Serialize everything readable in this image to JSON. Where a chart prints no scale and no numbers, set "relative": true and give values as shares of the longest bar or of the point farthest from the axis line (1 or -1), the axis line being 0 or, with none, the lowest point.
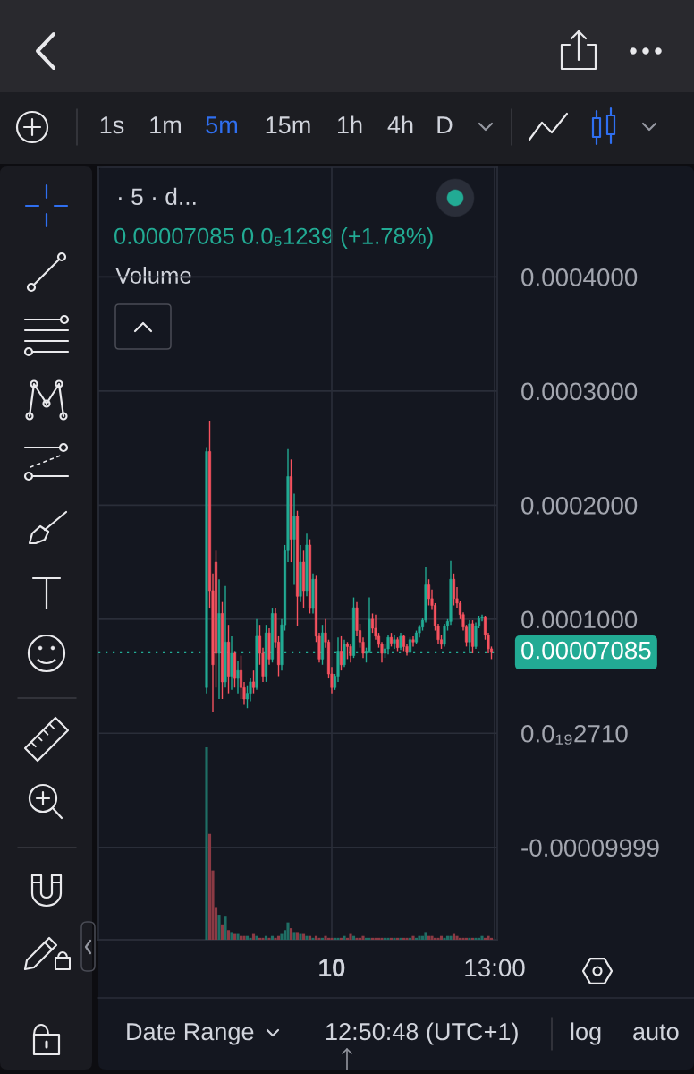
{
  "chart_data": [
    {
      "type": "candlestick",
      "title": "· 5 · d...",
      "subtitle": "0.00007085 0.0₅1239 (+1.78%)",
      "categories": [
        null,
        null,
        null,
        null,
        null,
        null,
        null,
        null,
        null,
        null,
        null,
        null,
        null,
        null,
        null,
        null,
        null,
        null,
        null,
        null,
        null,
        null,
        null,
        null,
        null,
        null,
        null,
        null,
        null,
        null,
        null,
        null,
        null,
        null,
        null,
        null,
        null,
        null,
        null,
        null,
        "10",
        null,
        null,
        null,
        null,
        null,
        null,
        null,
        null,
        null,
        null,
        null,
        null,
        null,
        null,
        null,
        null,
        null,
        null,
        null,
        null,
        null,
        null,
        null,
        null,
        null,
        null,
        null,
        null,
        null,
        null,
        null,
        null,
        null,
        null,
        null,
        null,
        null,
        null,
        null,
        null,
        null,
        null,
        null,
        null,
        null,
        null,
        null,
        null,
        null,
        null,
        null,
        "13:00"
      ],
      "ylim": [
        -0.000181,
        0.000496
      ],
      "yticks": [
        {
          "value": 0.0004,
          "label": "0.0004000"
        },
        {
          "value": 0.0003,
          "label": "0.0003000"
        },
        {
          "value": 0.0002,
          "label": "0.0002000"
        },
        {
          "value": 0.0001,
          "label": "0.0001000"
        },
        {
          "value": 0,
          "label": "0.0₁₉2710"
        },
        {
          "value": -9.999e-05,
          "label": "-0.00009999"
        }
      ],
      "grid": true,
      "ohlc": [
        [
          4e-05,
          0.00025,
          3.5e-05,
          0.000247
        ],
        [
          0.000247,
          0.000274,
          0.00011,
          0.000125
        ],
        [
          0.000125,
          0.00014,
          1.9e-05,
          6e-05
        ],
        [
          0.00015,
          0.00016,
          4e-05,
          7e-05
        ],
        [
          7e-05,
          0.000135,
          3e-05,
          0.000105
        ],
        [
          0.000105,
          0.000115,
          3e-05,
          4.5e-05
        ],
        [
          4.5e-05,
          0.000129,
          4e-05,
          8e-05
        ],
        [
          8e-05,
          9.5e-05,
          3.5e-05,
          5e-05
        ],
        [
          5e-05,
          8.5e-05,
          3.8e-05,
          7e-05
        ],
        [
          7e-05,
          7.2e-05,
          4e-05,
          4.8e-05
        ],
        [
          4.8e-05,
          6.3e-05,
          3.5e-05,
          5.5e-05
        ],
        [
          5.5e-05,
          6.8e-05,
          3e-05,
          4e-05
        ],
        [
          4e-05,
          4.5e-05,
          2.5e-05,
          3e-05
        ],
        [
          3e-05,
          4.2e-05,
          2.2e-05,
          3.5e-05
        ],
        [
          3.5e-05,
          4.8e-05,
          2.8e-05,
          4.5e-05
        ],
        [
          4.5e-05,
          5.5e-05,
          3.5e-05,
          4e-05
        ],
        [
          4e-05,
          0.0001,
          3.8e-05,
          8.5e-05
        ],
        [
          8.5e-05,
          9.5e-05,
          6e-05,
          7e-05
        ],
        [
          7e-05,
          7.5e-05,
          4.5e-05,
          5e-05
        ],
        [
          5e-05,
          9.5e-05,
          4.5e-05,
          8.8e-05
        ],
        [
          8.8e-05,
          9.2e-05,
          6e-05,
          6.5e-05
        ],
        [
          6.5e-05,
          0.00011,
          6.2e-05,
          0.000105
        ],
        [
          0.000105,
          0.00011,
          7.5e-05,
          8e-05
        ],
        [
          8e-05,
          8.5e-05,
          5e-05,
          6e-05
        ],
        [
          6e-05,
          0.0001,
          5.5e-05,
          9.5e-05
        ],
        [
          9.5e-05,
          0.000165,
          9e-05,
          0.00016
        ],
        [
          0.00016,
          0.000249,
          0.00015,
          0.000225
        ],
        [
          0.000225,
          0.00024,
          0.00015,
          0.00017
        ],
        [
          0.00017,
          0.00021,
          0.00013,
          0.00019
        ],
        [
          0.00019,
          0.000195,
          9.4e-05,
          0.00012
        ],
        [
          0.00012,
          0.000165,
          0.000115,
          0.00015
        ],
        [
          0.00015,
          0.00016,
          0.00011,
          0.000125
        ],
        [
          0.000125,
          0.000175,
          0.00012,
          0.000165
        ],
        [
          0.000165,
          0.00017,
          0.000105,
          0.00011
        ],
        [
          0.00011,
          0.00014,
          0.000105,
          0.000135
        ],
        [
          0.000135,
          0.000138,
          8e-05,
          8.5e-05
        ],
        [
          8.5e-05,
          8.8e-05,
          6.2e-05,
          6.5e-05
        ],
        [
          6.5e-05,
          9.5e-05,
          6e-05,
          8.8e-05
        ],
        [
          8.8e-05,
          0.0001,
          7.5e-05,
          8e-05
        ],
        [
          8e-05,
          8.2e-05,
          4.8e-05,
          5.2e-05
        ],
        [
          5.2e-05,
          5.8e-05,
          3.5e-05,
          4e-05
        ],
        [
          4e-05,
          5.2e-05,
          3.8e-05,
          5e-05
        ],
        [
          5e-05,
          8.4e-05,
          4.5e-05,
          7.2e-05
        ],
        [
          7.2e-05,
          8.5e-05,
          5.5e-05,
          6e-05
        ],
        [
          6e-05,
          8.2e-05,
          5.8e-05,
          7.8e-05
        ],
        [
          7.8e-05,
          8e-05,
          6.5e-05,
          7.6e-05
        ],
        [
          7.6e-05,
          7.8e-05,
          6.2e-05,
          6.8e-05
        ],
        [
          6.8e-05,
          0.000119,
          6.6e-05,
          0.00011
        ],
        [
          0.00011,
          0.000115,
          8.5e-05,
          9e-05
        ],
        [
          9e-05,
          9.6e-05,
          7.5e-05,
          8e-05
        ],
        [
          8e-05,
          8.4e-05,
          6.6e-05,
          7e-05
        ],
        [
          7e-05,
          7.5e-05,
          6.2e-05,
          7.2e-05
        ],
        [
          7.2e-05,
          0.000119,
          7e-05,
          0.0001
        ],
        [
          0.0001,
          0.000105,
          8.8e-05,
          9.2e-05
        ],
        [
          9.2e-05,
          0.000104,
          8.2e-05,
          8.5e-05
        ],
        [
          8.5e-05,
          8.8e-05,
          7.5e-05,
          7.8e-05
        ],
        [
          7.8e-05,
          8e-05,
          6.2e-05,
          7e-05
        ],
        [
          7e-05,
          7.8e-05,
          6.6e-05,
          7.4e-05
        ],
        [
          7.4e-05,
          8.6e-05,
          6.9e-05,
          8.4e-05
        ],
        [
          8.4e-05,
          8.8e-05,
          7.6e-05,
          7.9e-05
        ],
        [
          7.9e-05,
          8.6e-05,
          7.4e-05,
          8.2e-05
        ],
        [
          8.2e-05,
          8.4e-05,
          7.2e-05,
          7.5e-05
        ],
        [
          7.5e-05,
          8.8e-05,
          7.3e-05,
          8.5e-05
        ],
        [
          8.5e-05,
          8.6e-05,
          7.2e-05,
          7.6e-05
        ],
        [
          7.6e-05,
          7.8e-05,
          6.8e-05,
          7.1e-05
        ],
        [
          7.1e-05,
          8.4e-05,
          7e-05,
          8.2e-05
        ],
        [
          8.2e-05,
          8.5e-05,
          7.6e-05,
          8e-05
        ],
        [
          8e-05,
          9e-05,
          7.8e-05,
          8.8e-05
        ],
        [
          8.8e-05,
          9.5e-05,
          8.4e-05,
          9.3e-05
        ],
        [
          9.3e-05,
          0.000101,
          9e-05,
          9.9e-05
        ],
        [
          9.9e-05,
          0.000146,
          9.7e-05,
          0.00013
        ],
        [
          0.00013,
          0.000135,
          0.000112,
          0.000118
        ],
        [
          0.000118,
          0.000126,
          0.000108,
          0.000112
        ],
        [
          0.000112,
          0.000114,
          9e-05,
          9.4e-05
        ],
        [
          9.4e-05,
          9.6e-05,
          7.8e-05,
          8.2e-05
        ],
        [
          8.2e-05,
          8.6e-05,
          7.4e-05,
          7.8e-05
        ],
        [
          7.8e-05,
          9.6e-05,
          7.6e-05,
          9.4e-05
        ],
        [
          9.4e-05,
          0.0001,
          9e-05,
          9.8e-05
        ],
        [
          9.8e-05,
          0.000151,
          9.5e-05,
          0.000135
        ],
        [
          0.000135,
          0.00014,
          0.000112,
          0.000118
        ],
        [
          0.000118,
          0.000128,
          0.00011,
          0.000114
        ],
        [
          0.000114,
          0.000116,
          0.0001,
          0.000104
        ],
        [
          0.000104,
          0.000106,
          9e-05,
          9.3e-05
        ],
        [
          9.3e-05,
          9.5e-05,
          7.6e-05,
          8e-05
        ],
        [
          8e-05,
          9.9e-05,
          7e-05,
          9.6e-05
        ],
        [
          9.6e-05,
          9.9e-05,
          7e-05,
          7.6e-05
        ],
        [
          7.6e-05,
          9.7e-05,
          7.4e-05,
          9.4e-05
        ],
        [
          9.4e-05,
          0.000103,
          9.2e-05,
          0.000101
        ],
        [
          0.000101,
          0.000104,
          9.8e-05,
          0.000102
        ],
        [
          0.000102,
          0.000103,
          8.2e-05,
          8.6e-05
        ],
        [
          8.6e-05,
          8.8e-05,
          7e-05,
          7.4e-05
        ],
        [
          7.4e-05,
          7.6e-05,
          6.5e-05,
          7.085e-05
        ],
        null
      ],
      "colors": [
        "#22ab94",
        "#f7525f",
        "#f7525f",
        "#f7525f",
        "#22ab94",
        "#f7525f",
        "#22ab94",
        "#f7525f",
        "#22ab94",
        "#f7525f",
        "#22ab94",
        "#f7525f",
        "#f7525f",
        "#22ab94",
        "#22ab94",
        "#f7525f",
        "#22ab94",
        "#f7525f",
        "#f7525f",
        "#22ab94",
        "#f7525f",
        "#22ab94",
        "#f7525f",
        "#f7525f",
        "#22ab94",
        "#22ab94",
        "#22ab94",
        "#f7525f",
        "#22ab94",
        "#f7525f",
        "#22ab94",
        "#f7525f",
        "#22ab94",
        "#f7525f",
        "#22ab94",
        "#f7525f",
        "#f7525f",
        "#22ab94",
        "#f7525f",
        "#f7525f",
        "#f7525f",
        "#22ab94",
        "#22ab94",
        "#f7525f",
        "#22ab94",
        "#f7525f",
        "#f7525f",
        "#22ab94",
        "#f7525f",
        "#f7525f",
        "#f7525f",
        "#22ab94",
        "#22ab94",
        "#f7525f",
        "#f7525f",
        "#f7525f",
        "#f7525f",
        "#22ab94",
        "#22ab94",
        "#f7525f",
        "#22ab94",
        "#f7525f",
        "#22ab94",
        "#f7525f",
        "#f7525f",
        "#22ab94",
        "#f7525f",
        "#22ab94",
        "#22ab94",
        "#22ab94",
        "#22ab94",
        "#f7525f",
        "#f7525f",
        "#f7525f",
        "#f7525f",
        "#f7525f",
        "#22ab94",
        "#22ab94",
        "#22ab94",
        "#f7525f",
        "#f7525f",
        "#f7525f",
        "#f7525f",
        "#f7525f",
        "#22ab94",
        "#f7525f",
        "#22ab94",
        "#22ab94",
        "#22ab94",
        "#f7525f",
        "#f7525f",
        "#f7525f",
        null
      ],
      "ref_lines": [
        {
          "axis": "y",
          "value": 7.085e-05,
          "label": "0.00007085",
          "color": "#22ab94",
          "line_style": "dotted"
        }
      ],
      "annotations": [
        "1s",
        "1m",
        "5m",
        "15m",
        "1h",
        "4h",
        "D",
        "Date Range",
        "12:50:48 (UTC+1)",
        "log",
        "auto"
      ]
    },
    {
      "type": "bar",
      "title": "Volume",
      "relative": true,
      "categories": [
        null,
        null,
        null,
        null,
        null,
        null,
        null,
        null,
        null,
        null,
        null,
        null,
        null,
        null,
        null,
        null,
        null,
        null,
        null,
        null,
        null,
        null,
        null,
        null,
        null,
        null,
        null,
        null,
        null,
        null,
        null,
        null,
        null,
        null,
        null,
        null,
        null,
        null,
        null,
        null,
        null,
        null,
        null,
        null,
        null,
        null,
        null,
        null,
        null,
        null,
        null,
        null,
        null,
        null,
        null,
        null,
        null,
        null,
        null,
        null,
        null,
        null,
        null,
        null,
        null,
        null,
        null,
        null,
        null,
        null,
        null,
        null,
        null,
        null,
        null,
        null,
        null,
        null,
        null,
        null,
        null,
        null,
        null,
        null,
        null,
        null,
        null,
        null,
        null,
        null,
        null,
        null,
        null
      ],
      "values": [
        1,
        0.55,
        0.36,
        0.17,
        0.13,
        0.08,
        0.12,
        0.05,
        0.04,
        0.03,
        0.03,
        0.02,
        0.02,
        0.02,
        0.01,
        0.03,
        0.02,
        0.01,
        0.01,
        0.02,
        0.01,
        0.02,
        0.01,
        0.02,
        0.03,
        0.05,
        0.09,
        0.06,
        0.04,
        0.04,
        0.03,
        0.03,
        0.02,
        0.02,
        0.01,
        0.02,
        0.01,
        0.01,
        0.02,
        0.01,
        0.01,
        0.01,
        0.01,
        0.01,
        0.02,
        0.01,
        0.03,
        0.02,
        0.01,
        0.01,
        0.02,
        0.01,
        0.01,
        0.01,
        0.01,
        0.01,
        0.01,
        0.01,
        0.01,
        0.01,
        0.01,
        0.01,
        0.01,
        0.01,
        0.01,
        0.01,
        0.02,
        0.01,
        0.02,
        0.02,
        0.04,
        0.02,
        0.02,
        0.01,
        0.01,
        0.02,
        0.01,
        0.02,
        0.02,
        0.03,
        0.02,
        0.01,
        0.01,
        0.01,
        0.01,
        0.01,
        0.01,
        0.01,
        0.02,
        0.01,
        0.02,
        0.01,
        null
      ],
      "colors": [
        "#1f6e65",
        "#8c3a44",
        "#8c3a44",
        "#8c3a44",
        "#1f6e65",
        "#8c3a44",
        "#1f6e65",
        "#8c3a44",
        "#1f6e65",
        "#8c3a44",
        "#1f6e65",
        "#8c3a44",
        "#8c3a44",
        "#1f6e65",
        "#1f6e65",
        "#8c3a44",
        "#1f6e65",
        "#8c3a44",
        "#8c3a44",
        "#1f6e65",
        "#8c3a44",
        "#1f6e65",
        "#8c3a44",
        "#8c3a44",
        "#1f6e65",
        "#1f6e65",
        "#1f6e65",
        "#8c3a44",
        "#1f6e65",
        "#8c3a44",
        "#1f6e65",
        "#8c3a44",
        "#1f6e65",
        "#8c3a44",
        "#1f6e65",
        "#8c3a44",
        "#8c3a44",
        "#1f6e65",
        "#8c3a44",
        "#8c3a44",
        "#8c3a44",
        "#1f6e65",
        "#1f6e65",
        "#8c3a44",
        "#1f6e65",
        "#8c3a44",
        "#8c3a44",
        "#1f6e65",
        "#8c3a44",
        "#8c3a44",
        "#8c3a44",
        "#1f6e65",
        "#1f6e65",
        "#8c3a44",
        "#8c3a44",
        "#8c3a44",
        "#8c3a44",
        "#1f6e65",
        "#1f6e65",
        "#8c3a44",
        "#1f6e65",
        "#8c3a44",
        "#1f6e65",
        "#8c3a44",
        "#8c3a44",
        "#1f6e65",
        "#8c3a44",
        "#1f6e65",
        "#1f6e65",
        "#1f6e65",
        "#1f6e65",
        "#8c3a44",
        "#8c3a44",
        "#8c3a44",
        "#8c3a44",
        "#8c3a44",
        "#1f6e65",
        "#1f6e65",
        "#1f6e65",
        "#8c3a44",
        "#8c3a44",
        "#8c3a44",
        "#8c3a44",
        "#8c3a44",
        "#1f6e65",
        "#8c3a44",
        "#1f6e65",
        "#1f6e65",
        "#1f6e65",
        "#8c3a44",
        "#8c3a44",
        "#8c3a44",
        null
      ]
    }
  ]
}
